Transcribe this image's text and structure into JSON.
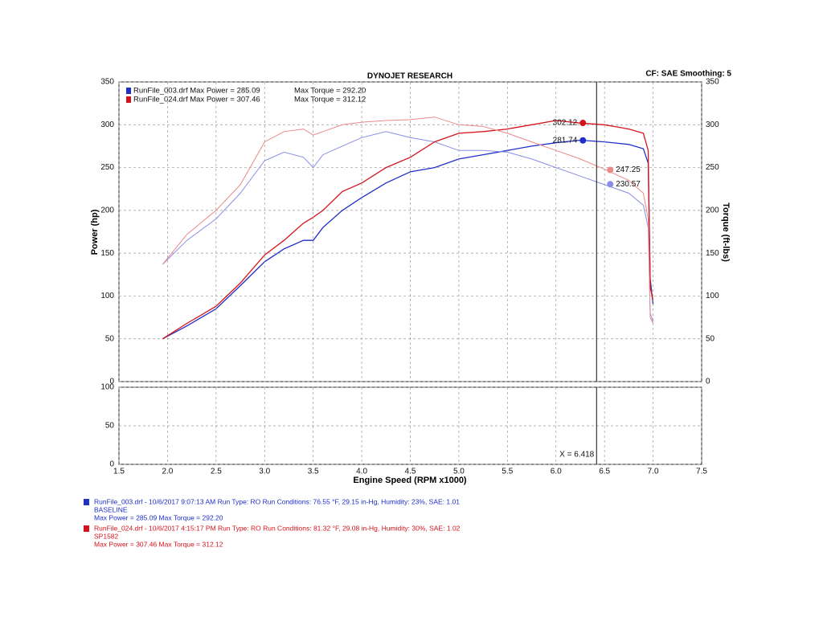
{
  "chart_data": [
    {
      "type": "line",
      "title": "DYNOJET RESEARCH",
      "corner_note": "CF: SAE  Smoothing: 5",
      "y_label": "Power (hp)",
      "y2_label": "Torque (ft-lbs)",
      "xlim": [
        1.5,
        7.5
      ],
      "ylim": [
        0,
        350
      ],
      "y2lim": [
        0,
        350
      ],
      "yticks": [
        0,
        50,
        100,
        150,
        200,
        250,
        300,
        350
      ],
      "y2ticks": [
        0,
        50,
        100,
        150,
        200,
        250,
        300,
        350
      ],
      "grid": true,
      "cursor_x": 6.418,
      "x": [
        1.95,
        2.2,
        2.5,
        2.75,
        3.0,
        3.2,
        3.4,
        3.5,
        3.6,
        3.8,
        4.0,
        4.25,
        4.5,
        4.75,
        5.0,
        5.25,
        5.5,
        5.75,
        6.0,
        6.25,
        6.5,
        6.75,
        6.9,
        6.95,
        6.97,
        7.0
      ],
      "series": [
        {
          "name": "RunFile_003.drf Max Power = 285.09",
          "color": "#1f2fc8",
          "cursor_value": 281.74,
          "values": [
            50,
            65,
            85,
            112,
            140,
            155,
            165,
            165,
            180,
            200,
            215,
            232,
            245,
            250,
            260,
            265,
            270,
            275,
            279,
            282,
            280,
            277,
            272,
            255,
            120,
            90
          ]
        },
        {
          "name": "Max Torque = 292.20",
          "color": "#8a8fe6",
          "axis": "y2",
          "cursor_value": 230.57,
          "values": [
            137,
            165,
            190,
            220,
            258,
            268,
            262,
            250,
            265,
            275,
            285,
            292,
            285,
            280,
            270,
            270,
            268,
            260,
            250,
            240,
            230,
            220,
            206,
            180,
            80,
            70
          ]
        },
        {
          "name": "RunFile_024.drf Max Power = 307.46",
          "color": "#d4141c",
          "cursor_value": 302.12,
          "values": [
            50,
            68,
            88,
            115,
            148,
            165,
            185,
            192,
            200,
            222,
            232,
            250,
            262,
            280,
            290,
            292,
            295,
            300,
            305,
            302,
            300,
            295,
            290,
            270,
            110,
            95
          ]
        },
        {
          "name": "Max Torque = 312.12",
          "color": "#ec8a8a",
          "axis": "y2",
          "cursor_value": 247.25,
          "values": [
            137,
            172,
            200,
            230,
            280,
            292,
            295,
            288,
            292,
            300,
            303,
            305,
            306,
            309,
            300,
            298,
            290,
            280,
            270,
            260,
            248,
            235,
            220,
            190,
            75,
            68
          ]
        }
      ]
    },
    {
      "type": "line",
      "x_label": "Engine Speed (RPM x1000)",
      "xlim": [
        1.5,
        7.5
      ],
      "ylim": [
        0,
        100
      ],
      "xticks": [
        1.5,
        {
          "value": 2,
          "label": "2.0"
        },
        2.5,
        {
          "value": 3,
          "label": "3.0"
        },
        3.5,
        {
          "value": 4,
          "label": "4.0"
        },
        4.5,
        {
          "value": 5,
          "label": "5.0"
        },
        5.5,
        {
          "value": 6,
          "label": "6.0"
        },
        6.5,
        {
          "value": 7,
          "label": "7.0"
        },
        7.5
      ],
      "yticks": [
        0,
        50,
        100
      ],
      "grid": true,
      "cursor_x": 6.418,
      "cursor_label": "X = 6.418",
      "series": []
    }
  ],
  "footer": [
    {
      "color": "#1f2fc8",
      "lines": [
        "RunFile_003.drf - 10/6/2017 9:07:13 AM  Run Type: RO  Run Conditions: 76.55 °F, 29.15 in-Hg,  Humidity:  23%, SAE: 1.01",
        "BASELINE",
        "Max Power = 285.09  Max Torque = 292.20"
      ]
    },
    {
      "color": "#d4141c",
      "lines": [
        "RunFile_024.drf - 10/6/2017 4:15:17 PM  Run Type: RO  Run Conditions: 81.32 °F, 29.08 in-Hg,  Humidity:  30%, SAE: 1.02",
        "SP1582",
        "Max Power = 307.46  Max Torque = 312.12"
      ]
    }
  ]
}
